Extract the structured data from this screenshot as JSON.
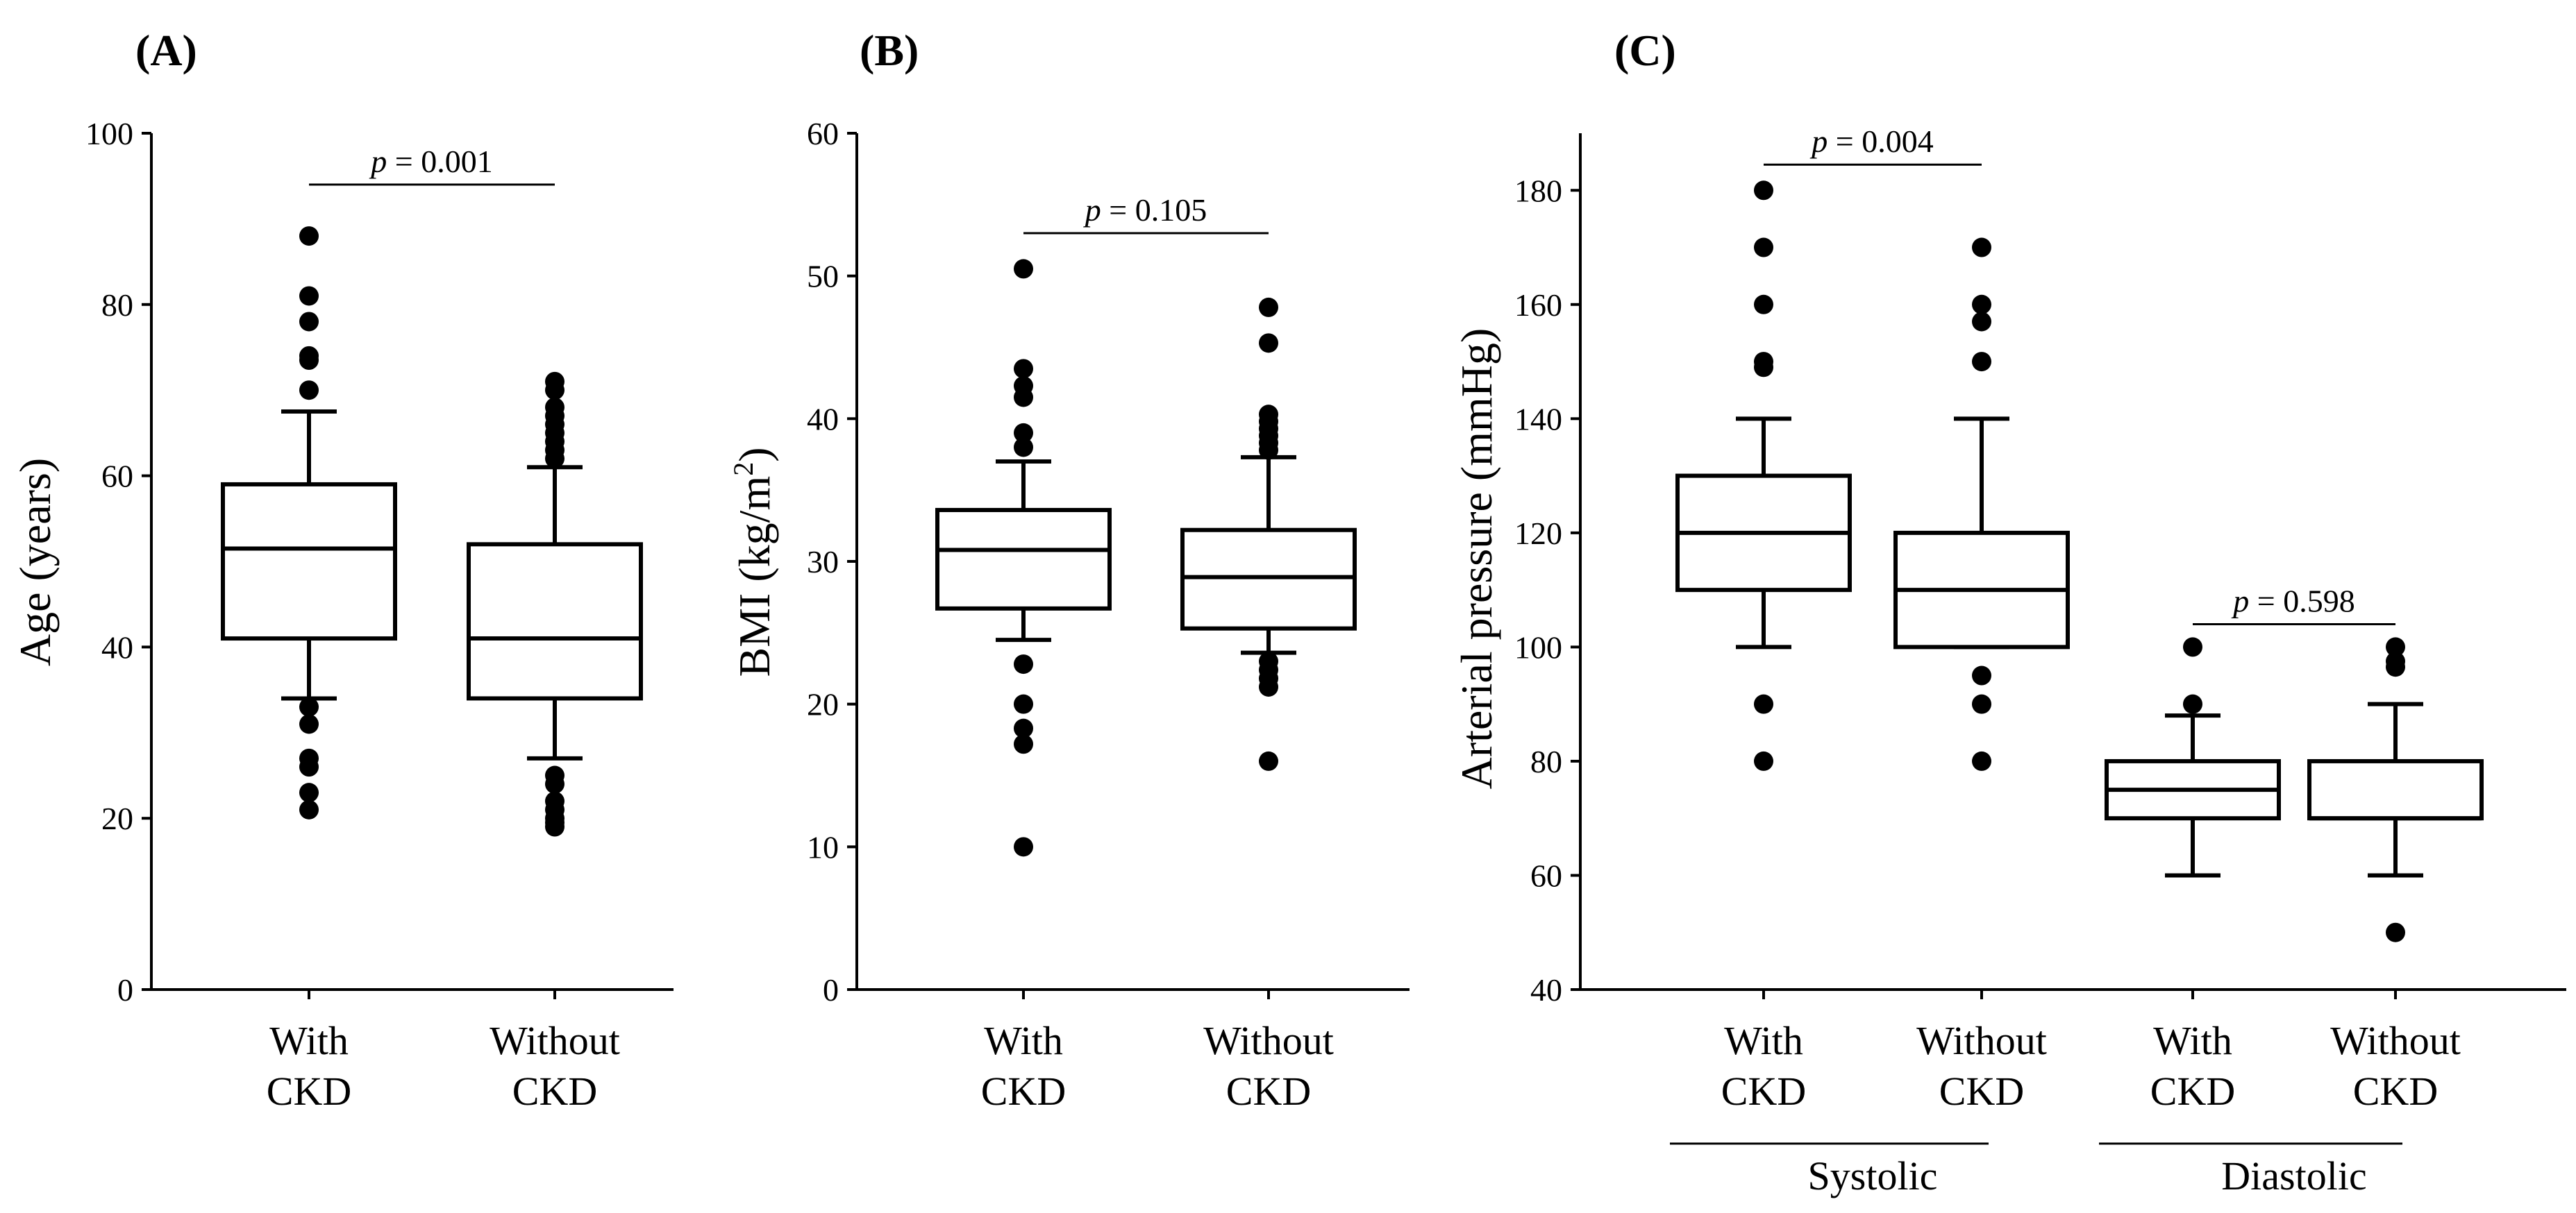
{
  "chart_data": [
    {
      "type": "box",
      "panel_label": "(A)",
      "ylabel": "Age (years)",
      "ylim": [
        0,
        100
      ],
      "yticks": [
        "0",
        "20",
        "40",
        "60",
        "80",
        "100"
      ],
      "categories": [
        {
          "line1": "With",
          "line2": "CKD"
        },
        {
          "line1": "Without",
          "line2": "CKD"
        }
      ],
      "boxes": [
        {
          "q1": 41,
          "median": 51.5,
          "q3": 59,
          "whisker_low": 34,
          "whisker_high": 67.5,
          "outliers": [
            33,
            31,
            27,
            26,
            23,
            21,
            70,
            73.5,
            74,
            78,
            81,
            88
          ]
        },
        {
          "q1": 34,
          "median": 41,
          "q3": 52,
          "whisker_low": 27,
          "whisker_high": 61,
          "outliers": [
            25,
            24,
            22,
            21,
            20,
            19.5,
            19,
            62,
            63,
            64,
            65,
            66,
            67,
            68,
            70,
            71
          ]
        }
      ],
      "significance": [
        {
          "label_p": "p",
          "label_rest": " = 0.001",
          "from": 0,
          "to": 1,
          "y": 94
        }
      ],
      "groups": []
    },
    {
      "type": "box",
      "panel_label": "(B)",
      "ylabel_pre": "BMI (kg/m",
      "ylabel_sup": "2",
      "ylabel_post": ")",
      "ylim": [
        0,
        60
      ],
      "yticks": [
        "0",
        "10",
        "20",
        "30",
        "40",
        "50",
        "60"
      ],
      "categories": [
        {
          "line1": "With",
          "line2": "CKD"
        },
        {
          "line1": "Without",
          "line2": "CKD"
        }
      ],
      "boxes": [
        {
          "q1": 26.7,
          "median": 30.8,
          "q3": 33.6,
          "whisker_low": 24.5,
          "whisker_high": 37,
          "outliers": [
            22.8,
            20,
            18.3,
            17.2,
            10,
            38,
            39,
            41.5,
            42.3,
            43.5,
            50.5
          ]
        },
        {
          "q1": 25.3,
          "median": 28.9,
          "q3": 32.2,
          "whisker_low": 23.6,
          "whisker_high": 37.3,
          "outliers": [
            23,
            22.4,
            21.8,
            21.2,
            16,
            37.8,
            38.3,
            38.8,
            39.3,
            39.8,
            40.3,
            45.3,
            47.8
          ]
        }
      ],
      "significance": [
        {
          "label_p": "p",
          "label_rest": " = 0.105",
          "from": 0,
          "to": 1,
          "y": 53
        }
      ],
      "groups": []
    },
    {
      "type": "box",
      "panel_label": "(C)",
      "ylabel": "Arterial pressure (mmHg)",
      "ylim": [
        40,
        190
      ],
      "yticks": [
        "40",
        "60",
        "80",
        "100",
        "120",
        "140",
        "160",
        "180"
      ],
      "categories": [
        {
          "line1": "With",
          "line2": "CKD"
        },
        {
          "line1": "Without",
          "line2": "CKD"
        },
        {
          "line1": "With",
          "line2": "CKD"
        },
        {
          "line1": "Without",
          "line2": "CKD"
        }
      ],
      "boxes": [
        {
          "q1": 110,
          "median": 120,
          "q3": 130,
          "whisker_low": 100,
          "whisker_high": 140,
          "outliers": [
            90,
            80,
            149,
            150,
            160,
            170,
            180
          ]
        },
        {
          "q1": 100,
          "median": 110,
          "q3": 120,
          "whisker_low": 100,
          "whisker_high": 140,
          "outliers": [
            95,
            90,
            80,
            150,
            157,
            160,
            170
          ]
        },
        {
          "q1": 70,
          "median": 75,
          "q3": 80,
          "whisker_low": 60,
          "whisker_high": 88,
          "outliers": [
            90,
            100
          ]
        },
        {
          "q1": 70,
          "median": 70,
          "q3": 80,
          "whisker_low": 60,
          "whisker_high": 90,
          "outliers": [
            50,
            96.5,
            97.5,
            100
          ]
        }
      ],
      "significance": [
        {
          "label_p": "p",
          "label_rest": " = 0.004",
          "from": 0,
          "to": 1,
          "y": 184.5
        },
        {
          "label_p": "p",
          "label_rest": " = 0.598",
          "from": 2,
          "to": 3,
          "y": 104
        }
      ],
      "groups": [
        {
          "label": "Systolic",
          "from": 0,
          "to": 1
        },
        {
          "label": "Diastolic",
          "from": 2,
          "to": 3
        }
      ]
    }
  ]
}
